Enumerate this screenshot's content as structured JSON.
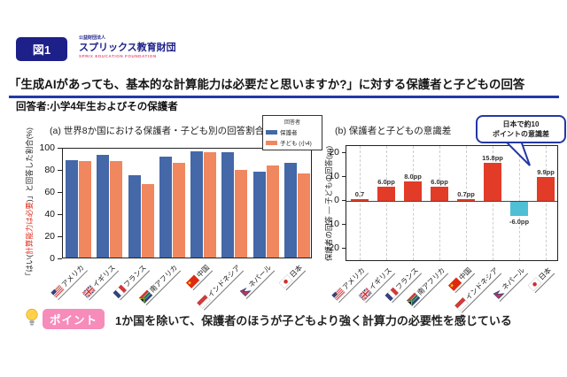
{
  "header": {
    "figure_label": "図1",
    "org_small": "公益財団法人",
    "org_name": "スプリックス教育財団",
    "org_en": "SPRIX EDUCATION FOUNDATION",
    "title": "「生成AIがあっても、基本的な計算能力は必要だと思いますか?」に対する保護者と子どもの回答",
    "respondent": "回答者:小学4年生およびその保護者"
  },
  "colors": {
    "navy": "#1d2088",
    "title_underline": "#2438a6",
    "parent_blue": "#4468A8",
    "child_orange": "#F0875F",
    "diff_positive_red": "#E23B28",
    "diff_negative_cyan": "#4EBFD5",
    "point_pink": "#f78cbb",
    "axis_label_red": "#e02a1a"
  },
  "chart_data": [
    {
      "type": "bar",
      "title": "(a) 世界8か国における保護者・子ども別の回答割合",
      "legend_title": "回答者",
      "legend_position": "top-right",
      "ylabel_parts": [
        "「はい(",
        "計算能力は必要",
        ")」と回答した割合(%)"
      ],
      "ylim": [
        0,
        100
      ],
      "yticks": [
        0,
        20,
        40,
        60,
        80,
        100
      ],
      "grid": false,
      "categories": [
        {
          "label": "アメリカ",
          "flag": "us",
          "flag_icon": "flag-us-icon"
        },
        {
          "label": "イギリス",
          "flag": "uk",
          "flag_icon": "flag-uk-icon"
        },
        {
          "label": "フランス",
          "flag": "fr",
          "flag_icon": "flag-france-icon"
        },
        {
          "label": "南アフリカ",
          "flag": "za",
          "flag_icon": "flag-south-africa-icon"
        },
        {
          "label": "中国",
          "flag": "cn",
          "flag_icon": "flag-china-icon"
        },
        {
          "label": "インドネシア",
          "flag": "id",
          "flag_icon": "flag-indonesia-icon"
        },
        {
          "label": "ネパール",
          "flag": "np",
          "flag_icon": "flag-nepal-icon"
        },
        {
          "label": "日本",
          "flag": "jp",
          "flag_icon": "flag-japan-icon"
        }
      ],
      "series": [
        {
          "name": "保護者",
          "color": "#4468A8",
          "values": [
            88.0,
            92.9,
            74.5,
            91.3,
            96.2,
            94.9,
            77.4,
            85.6
          ]
        },
        {
          "name": "子ども (小4)",
          "color": "#F0875F",
          "values": [
            87.3,
            86.9,
            66.5,
            85.3,
            95.5,
            79.1,
            83.4,
            75.7
          ]
        }
      ]
    },
    {
      "type": "bar",
      "title": "(b) 保護者と子どもの意識差",
      "ylabel": "保護者の回答 ― 子どもの回答(pp)",
      "ylim": [
        -20,
        20
      ],
      "yticks": [
        20,
        10,
        0,
        -10,
        -20
      ],
      "grid": "vertical-dashed",
      "bar_color_positive": "#E23B28",
      "bar_color_negative": "#4EBFD5",
      "categories": [
        {
          "label": "アメリカ",
          "flag": "us",
          "flag_icon": "flag-us-icon"
        },
        {
          "label": "イギリス",
          "flag": "uk",
          "flag_icon": "flag-uk-icon"
        },
        {
          "label": "フランス",
          "flag": "fr",
          "flag_icon": "flag-france-icon"
        },
        {
          "label": "南アフリカ",
          "flag": "za",
          "flag_icon": "flag-south-africa-icon"
        },
        {
          "label": "中国",
          "flag": "cn",
          "flag_icon": "flag-china-icon"
        },
        {
          "label": "インドネシア",
          "flag": "id",
          "flag_icon": "flag-indonesia-icon"
        },
        {
          "label": "ネパール",
          "flag": "np",
          "flag_icon": "flag-nepal-icon"
        },
        {
          "label": "日本",
          "flag": "jp",
          "flag_icon": "flag-japan-icon"
        }
      ],
      "values": [
        0.7,
        6.0,
        8.0,
        6.0,
        0.7,
        15.8,
        -6.0,
        9.9
      ],
      "value_labels": [
        "0.7",
        "6.0pp",
        "8.0pp",
        "6.0pp",
        "0.7pp",
        "15.8pp",
        "-6.0pp",
        "9.9pp"
      ],
      "annotation": {
        "lines": [
          "日本で約10",
          "ポイントの意識差"
        ],
        "target": "日本"
      }
    }
  ],
  "point": {
    "badge": "ポイント",
    "text": "1か国を除いて、保護者のほうが子どもより強く計算力の必要性を感じている",
    "icon": "lightbulb-icon"
  }
}
